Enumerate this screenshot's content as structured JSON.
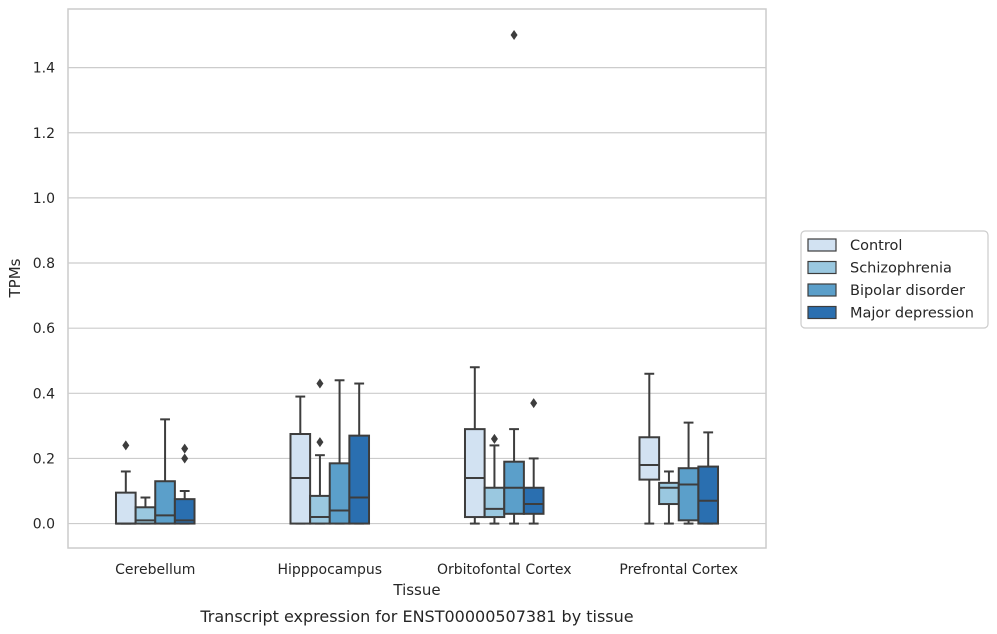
{
  "chart_data": {
    "type": "box",
    "caption": "Transcript expression for ENST00000507381 by tissue",
    "xlabel": "Tissue",
    "ylabel": "TPMs",
    "ylim": [
      -0.075,
      1.58
    ],
    "yticks": [
      0.0,
      0.2,
      0.4,
      0.6,
      0.8,
      1.0,
      1.2,
      1.4
    ],
    "ytick_labels": [
      "0.0",
      "0.2",
      "0.4",
      "0.6",
      "0.8",
      "1.0",
      "1.2",
      "1.4"
    ],
    "grid": "horizontal",
    "legend_position": "right",
    "categories": [
      "Cerebellum",
      "Hipppocampus",
      "Orbitofontal Cortex",
      "Prefrontal Cortex"
    ],
    "series": [
      {
        "name": "Control",
        "color": "#d2e2f2",
        "boxes": [
          {
            "whislo": 0.0,
            "q1": 0.0,
            "med": 0.0,
            "q3": 0.095,
            "whishi": 0.16,
            "fliers": [
              0.24
            ]
          },
          {
            "whislo": 0.0,
            "q1": 0.0,
            "med": 0.14,
            "q3": 0.275,
            "whishi": 0.39,
            "fliers": []
          },
          {
            "whislo": 0.0,
            "q1": 0.02,
            "med": 0.14,
            "q3": 0.29,
            "whishi": 0.48,
            "fliers": []
          },
          {
            "whislo": 0.0,
            "q1": 0.135,
            "med": 0.18,
            "q3": 0.265,
            "whishi": 0.46,
            "fliers": []
          }
        ]
      },
      {
        "name": "Schizophrenia",
        "color": "#9ac8e0",
        "boxes": [
          {
            "whislo": 0.0,
            "q1": 0.0,
            "med": 0.01,
            "q3": 0.05,
            "whishi": 0.08,
            "fliers": []
          },
          {
            "whislo": 0.0,
            "q1": 0.0,
            "med": 0.02,
            "q3": 0.085,
            "whishi": 0.21,
            "fliers": [
              0.25,
              0.43
            ]
          },
          {
            "whislo": 0.0,
            "q1": 0.02,
            "med": 0.045,
            "q3": 0.11,
            "whishi": 0.24,
            "fliers": [
              0.26
            ]
          },
          {
            "whislo": 0.0,
            "q1": 0.06,
            "med": 0.11,
            "q3": 0.125,
            "whishi": 0.16,
            "fliers": []
          }
        ]
      },
      {
        "name": "Bipolar disorder",
        "color": "#5b9fca",
        "boxes": [
          {
            "whislo": 0.0,
            "q1": 0.0,
            "med": 0.025,
            "q3": 0.13,
            "whishi": 0.32,
            "fliers": []
          },
          {
            "whislo": 0.0,
            "q1": 0.0,
            "med": 0.04,
            "q3": 0.185,
            "whishi": 0.44,
            "fliers": []
          },
          {
            "whislo": 0.0,
            "q1": 0.03,
            "med": 0.11,
            "q3": 0.19,
            "whishi": 0.29,
            "fliers": [
              1.5
            ]
          },
          {
            "whislo": 0.0,
            "q1": 0.01,
            "med": 0.12,
            "q3": 0.17,
            "whishi": 0.31,
            "fliers": []
          }
        ]
      },
      {
        "name": "Major depression",
        "color": "#2a6fb0",
        "boxes": [
          {
            "whislo": 0.0,
            "q1": 0.0,
            "med": 0.01,
            "q3": 0.075,
            "whishi": 0.1,
            "fliers": [
              0.2,
              0.23
            ]
          },
          {
            "whislo": 0.0,
            "q1": 0.0,
            "med": 0.08,
            "q3": 0.27,
            "whishi": 0.43,
            "fliers": []
          },
          {
            "whislo": 0.0,
            "q1": 0.03,
            "med": 0.06,
            "q3": 0.11,
            "whishi": 0.2,
            "fliers": [
              0.37
            ]
          },
          {
            "whislo": 0.0,
            "q1": 0.0,
            "med": 0.07,
            "q3": 0.175,
            "whishi": 0.28,
            "fliers": []
          }
        ]
      }
    ]
  }
}
